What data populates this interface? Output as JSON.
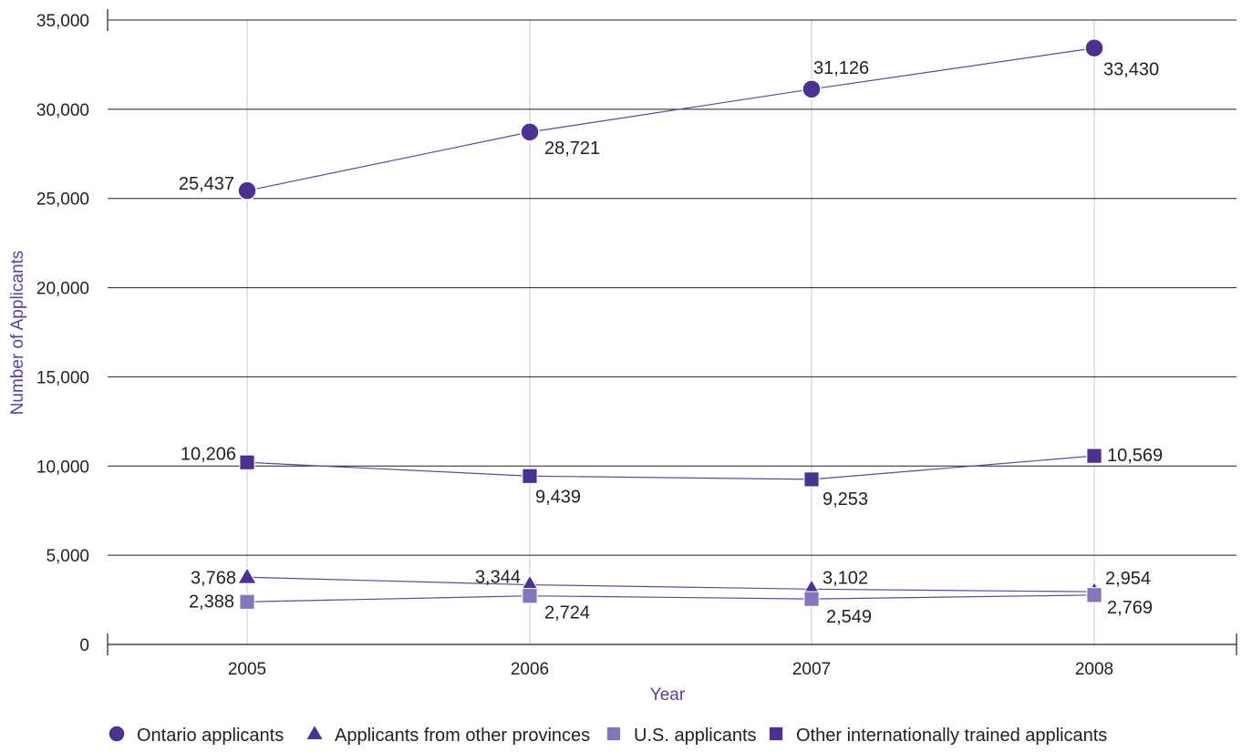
{
  "chart_data": {
    "type": "line",
    "title": "",
    "xlabel": "Year",
    "ylabel": "Number of Applicants",
    "categories": [
      "2005",
      "2006",
      "2007",
      "2008"
    ],
    "ylim": [
      0,
      35000
    ],
    "yticks": [
      0,
      5000,
      10000,
      15000,
      20000,
      25000,
      30000,
      35000
    ],
    "ytick_labels": [
      "0",
      "5,000",
      "10,000",
      "15,000",
      "20,000",
      "25,000",
      "30,000",
      "35,000"
    ],
    "grid": true,
    "legend_position": "bottom",
    "series": [
      {
        "name": "Ontario applicants",
        "marker": "circle",
        "color": "#4a3290",
        "values": [
          25437,
          28721,
          31126,
          33430
        ],
        "labels": [
          "25,437",
          "28,721",
          "31,126",
          "33,430"
        ]
      },
      {
        "name": "Applicants from other provinces",
        "marker": "triangle",
        "color": "#4a3290",
        "values": [
          3768,
          3344,
          3102,
          2954
        ],
        "labels": [
          "3,768",
          "3,344",
          "3,102",
          "2,954"
        ]
      },
      {
        "name": "U.S. applicants",
        "marker": "square",
        "color": "#8474b8",
        "values": [
          2388,
          2724,
          2549,
          2769
        ],
        "labels": [
          "2,388",
          "2,724",
          "2,549",
          "2,769"
        ]
      },
      {
        "name": "Other internationally trained applicants",
        "marker": "square",
        "color": "#4a3290",
        "values": [
          10206,
          9439,
          9253,
          10569
        ],
        "labels": [
          "10,206",
          "9,439",
          "9,253",
          "10,569"
        ]
      }
    ],
    "colors": {
      "axis_title": "#5b3f9b",
      "grid": "#231f20",
      "vgrid": "#c8c6d8",
      "line": "#5a4a9a"
    }
  }
}
